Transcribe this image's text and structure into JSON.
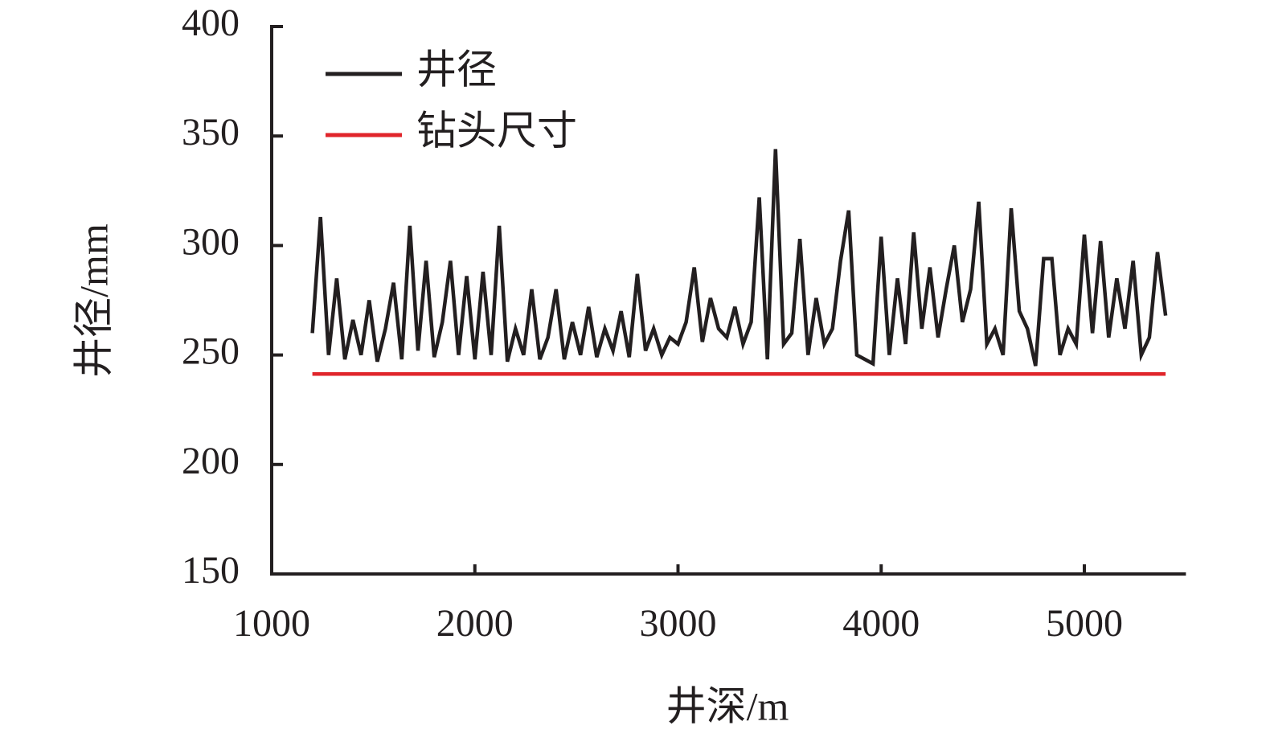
{
  "chart_data": {
    "type": "line",
    "xlabel": "井深/m",
    "ylabel": "井径/mm",
    "xlim": [
      1000,
      5500
    ],
    "xticks": [
      1000,
      2000,
      3000,
      4000,
      5000
    ],
    "ylim": [
      150,
      400
    ],
    "yticks": [
      150,
      200,
      250,
      300,
      350,
      400
    ],
    "legend": "upper left",
    "series": [
      {
        "name": "井径",
        "color": "#231f20",
        "x": [
          1200,
          1240,
          1280,
          1320,
          1360,
          1400,
          1440,
          1480,
          1520,
          1560,
          1600,
          1640,
          1680,
          1720,
          1760,
          1800,
          1840,
          1880,
          1920,
          1960,
          2000,
          2040,
          2080,
          2120,
          2160,
          2200,
          2240,
          2280,
          2320,
          2360,
          2400,
          2440,
          2480,
          2520,
          2560,
          2600,
          2640,
          2680,
          2720,
          2760,
          2800,
          2840,
          2880,
          2920,
          2960,
          3000,
          3040,
          3080,
          3120,
          3160,
          3200,
          3240,
          3280,
          3320,
          3360,
          3400,
          3440,
          3480,
          3520,
          3560,
          3600,
          3640,
          3680,
          3720,
          3760,
          3800,
          3840,
          3880,
          3920,
          3960,
          4000,
          4040,
          4080,
          4120,
          4160,
          4200,
          4240,
          4280,
          4320,
          4360,
          4400,
          4440,
          4480,
          4520,
          4560,
          4600,
          4640,
          4680,
          4720,
          4760,
          4800,
          4840,
          4880,
          4920,
          4960,
          5000,
          5040,
          5080,
          5120,
          5160,
          5200,
          5240,
          5280,
          5320,
          5360,
          5400
        ],
        "values": [
          260,
          313,
          250,
          285,
          248,
          266,
          250,
          275,
          247,
          262,
          283,
          248,
          309,
          252,
          293,
          249,
          265,
          293,
          250,
          286,
          248,
          288,
          250,
          309,
          247,
          262,
          250,
          280,
          248,
          258,
          280,
          248,
          265,
          250,
          272,
          249,
          262,
          252,
          270,
          249,
          287,
          252,
          262,
          250,
          258,
          255,
          265,
          290,
          256,
          276,
          262,
          258,
          272,
          255,
          265,
          322,
          248,
          344,
          255,
          260,
          303,
          250,
          276,
          255,
          262,
          293,
          316,
          250,
          248,
          246,
          304,
          250,
          285,
          255,
          306,
          262,
          290,
          258,
          280,
          300,
          265,
          280,
          320,
          255,
          262,
          250,
          317,
          270,
          262,
          245,
          294,
          294,
          250,
          262,
          255,
          305,
          260,
          302,
          258,
          285,
          262,
          293,
          250,
          258,
          297,
          268
        ]
      },
      {
        "name": "钻头尺寸",
        "color": "#e0252b",
        "x": [
          1200,
          5400
        ],
        "values": [
          241.3,
          241.3
        ]
      }
    ]
  }
}
